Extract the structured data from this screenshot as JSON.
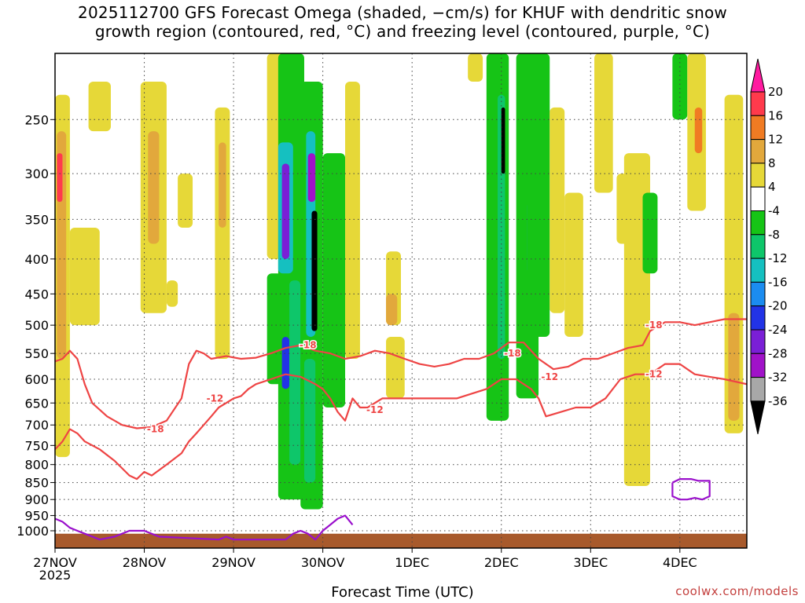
{
  "title_lines": [
    "2025112700 GFS Forecast Omega (shaded, −cm/s) for KHUF with dendritic snow",
    "growth region (contoured, red, °C) and freezing level (contoured, purple, °C)"
  ],
  "credit": "coolwx.com/models",
  "chart_data": {
    "type": "heatmap",
    "title": "2025112700 GFS Forecast Omega (shaded, −cm/s) for KHUF with dendritic snow growth region (contoured, red, °C) and freezing level (contoured, purple, °C)",
    "xlabel": "Forecast Time (UTC)",
    "ylabel": "",
    "x_unit": "hours since 2025-11-27 00 UTC",
    "xlim": [
      0,
      186
    ],
    "ylim_hPa": [
      1060,
      200
    ],
    "x_ticks": [
      {
        "x": 0,
        "label": "27NOV",
        "sublabel": "2025"
      },
      {
        "x": 24,
        "label": "28NOV"
      },
      {
        "x": 48,
        "label": "29NOV"
      },
      {
        "x": 72,
        "label": "30NOV"
      },
      {
        "x": 96,
        "label": "1DEC"
      },
      {
        "x": 120,
        "label": "2DEC"
      },
      {
        "x": 144,
        "label": "3DEC"
      },
      {
        "x": 168,
        "label": "4DEC"
      }
    ],
    "y_ticks": [
      250,
      300,
      350,
      400,
      450,
      500,
      550,
      600,
      650,
      700,
      750,
      800,
      850,
      900,
      950,
      1000
    ],
    "grid": true,
    "colorbar": {
      "ticks": [
        20,
        16,
        12,
        8,
        4,
        -4,
        -8,
        -12,
        -16,
        -20,
        -24,
        -28,
        -32,
        -36
      ],
      "bins": [
        {
          "low": 16,
          "high": 20,
          "color": "#ff3a4c"
        },
        {
          "low": 12,
          "high": 16,
          "color": "#f07b23"
        },
        {
          "low": 8,
          "high": 12,
          "color": "#e2a83c"
        },
        {
          "low": 4,
          "high": 8,
          "color": "#e6d838"
        },
        {
          "low": -4,
          "high": 4,
          "color": "#ffffff"
        },
        {
          "low": -8,
          "high": -4,
          "color": "#16c416"
        },
        {
          "low": -12,
          "high": -8,
          "color": "#0ec66a"
        },
        {
          "low": -16,
          "high": -12,
          "color": "#15c0c0"
        },
        {
          "low": -20,
          "high": -16,
          "color": "#1b8cf0"
        },
        {
          "low": -24,
          "high": -20,
          "color": "#2233e6"
        },
        {
          "low": -28,
          "high": -24,
          "color": "#7a1fd6"
        },
        {
          "low": -32,
          "high": -28,
          "color": "#a012c8"
        },
        {
          "low": -36,
          "high": -32,
          "color": "#a8a8a8"
        }
      ],
      "over_color": "#ff1aa0",
      "under_color": "#000000"
    },
    "omega_patches": [
      {
        "x": [
          0,
          4
        ],
        "p": [
          230,
          780
        ],
        "v": 6
      },
      {
        "x": [
          0.5,
          3
        ],
        "p": [
          260,
          560
        ],
        "v": 10
      },
      {
        "x": [
          0.5,
          2
        ],
        "p": [
          280,
          330
        ],
        "v": 18
      },
      {
        "x": [
          4,
          12
        ],
        "p": [
          360,
          500
        ],
        "v": 5
      },
      {
        "x": [
          9,
          15
        ],
        "p": [
          220,
          260
        ],
        "v": 5
      },
      {
        "x": [
          23,
          30
        ],
        "p": [
          220,
          480
        ],
        "v": 6
      },
      {
        "x": [
          25,
          28
        ],
        "p": [
          260,
          380
        ],
        "v": 10
      },
      {
        "x": [
          30,
          33
        ],
        "p": [
          430,
          470
        ],
        "v": 5
      },
      {
        "x": [
          33,
          37
        ],
        "p": [
          300,
          360
        ],
        "v": 5
      },
      {
        "x": [
          43,
          47
        ],
        "p": [
          240,
          560
        ],
        "v": 6
      },
      {
        "x": [
          44,
          46
        ],
        "p": [
          270,
          360
        ],
        "v": 9
      },
      {
        "x": [
          57,
          62
        ],
        "p": [
          200,
          400
        ],
        "v": 6
      },
      {
        "x": [
          57,
          61
        ],
        "p": [
          420,
          610
        ],
        "v": -6
      },
      {
        "x": [
          60,
          67
        ],
        "p": [
          200,
          900
        ],
        "v": -7
      },
      {
        "x": [
          60,
          64
        ],
        "p": [
          270,
          420
        ],
        "v": -14
      },
      {
        "x": [
          61,
          63
        ],
        "p": [
          290,
          400
        ],
        "v": -26
      },
      {
        "x": [
          61,
          63
        ],
        "p": [
          520,
          620
        ],
        "v": -22
      },
      {
        "x": [
          63,
          66
        ],
        "p": [
          430,
          800
        ],
        "v": -10
      },
      {
        "x": [
          66,
          72
        ],
        "p": [
          220,
          930
        ],
        "v": -8
      },
      {
        "x": [
          67.5,
          70
        ],
        "p": [
          260,
          520
        ],
        "v": -16
      },
      {
        "x": [
          68,
          70
        ],
        "p": [
          280,
          330
        ],
        "v": -30
      },
      {
        "x": [
          69,
          70.5
        ],
        "p": [
          340,
          510
        ],
        "v": -40
      },
      {
        "x": [
          67,
          70
        ],
        "p": [
          560,
          850
        ],
        "v": -12
      },
      {
        "x": [
          72,
          78
        ],
        "p": [
          280,
          660
        ],
        "v": -7
      },
      {
        "x": [
          78,
          82
        ],
        "p": [
          220,
          560
        ],
        "v": 5
      },
      {
        "x": [
          89,
          94
        ],
        "p": [
          520,
          640
        ],
        "v": 5
      },
      {
        "x": [
          89,
          93
        ],
        "p": [
          390,
          500
        ],
        "v": 6
      },
      {
        "x": [
          89,
          92
        ],
        "p": [
          450,
          500
        ],
        "v": 10
      },
      {
        "x": [
          111,
          115
        ],
        "p": [
          200,
          220
        ],
        "v": 5
      },
      {
        "x": [
          116,
          122
        ],
        "p": [
          200,
          690
        ],
        "v": -6
      },
      {
        "x": [
          119,
          121
        ],
        "p": [
          230,
          560
        ],
        "v": -12
      },
      {
        "x": [
          120,
          121
        ],
        "p": [
          240,
          300
        ],
        "v": -40
      },
      {
        "x": [
          124,
          130
        ],
        "p": [
          200,
          640
        ],
        "v": -7
      },
      {
        "x": [
          127,
          129
        ],
        "p": [
          330,
          420
        ],
        "v": -20
      },
      {
        "x": [
          127,
          133
        ],
        "p": [
          200,
          520
        ],
        "v": -5
      },
      {
        "x": [
          133,
          137
        ],
        "p": [
          240,
          480
        ],
        "v": 5
      },
      {
        "x": [
          137,
          142
        ],
        "p": [
          320,
          520
        ],
        "v": 6
      },
      {
        "x": [
          145,
          150
        ],
        "p": [
          200,
          320
        ],
        "v": 5
      },
      {
        "x": [
          151,
          155
        ],
        "p": [
          300,
          380
        ],
        "v": 6
      },
      {
        "x": [
          153,
          160
        ],
        "p": [
          280,
          860
        ],
        "v": 5
      },
      {
        "x": [
          158,
          162
        ],
        "p": [
          320,
          420
        ],
        "v": -6
      },
      {
        "x": [
          166,
          170
        ],
        "p": [
          200,
          250
        ],
        "v": -6
      },
      {
        "x": [
          170,
          175
        ],
        "p": [
          200,
          340
        ],
        "v": 5
      },
      {
        "x": [
          172,
          174
        ],
        "p": [
          240,
          280
        ],
        "v": 14
      },
      {
        "x": [
          180,
          185
        ],
        "p": [
          230,
          720
        ],
        "v": 5
      },
      {
        "x": [
          181,
          184
        ],
        "p": [
          480,
          690
        ],
        "v": 8
      }
    ],
    "series": [
      {
        "name": "-18",
        "color": "#ee4444",
        "x": [
          0,
          2,
          4,
          6,
          8,
          10,
          14,
          18,
          22,
          26,
          30,
          34,
          36,
          38,
          40,
          42,
          46,
          50,
          54,
          58,
          62,
          66,
          70,
          74,
          78,
          82,
          86,
          90,
          94,
          98,
          102,
          106,
          110,
          114,
          118,
          122,
          126,
          130,
          134,
          138,
          142,
          146,
          150,
          154,
          158,
          160,
          164,
          168,
          172,
          176,
          180,
          186
        ],
        "y": [
          565,
          560,
          545,
          560,
          610,
          650,
          680,
          700,
          708,
          705,
          690,
          640,
          570,
          545,
          550,
          560,
          555,
          560,
          558,
          550,
          540,
          535,
          545,
          550,
          560,
          555,
          545,
          550,
          560,
          570,
          575,
          570,
          560,
          560,
          550,
          530,
          530,
          560,
          580,
          575,
          560,
          560,
          550,
          540,
          535,
          510,
          495,
          495,
          500,
          495,
          490,
          490
        ]
      },
      {
        "name": "-12",
        "color": "#ee4444",
        "x": [
          0,
          2,
          4,
          6,
          8,
          12,
          16,
          20,
          22,
          24,
          26,
          30,
          34,
          36,
          38,
          40,
          42,
          44,
          46,
          48,
          50,
          52,
          54,
          58,
          62,
          66,
          70,
          72,
          74,
          76,
          78,
          80,
          82,
          84,
          88,
          92,
          96,
          100,
          104,
          108,
          112,
          116,
          120,
          124,
          128,
          130,
          132,
          136,
          140,
          144,
          148,
          152,
          156,
          160,
          164,
          168,
          172,
          176,
          180,
          186
        ],
        "y": [
          760,
          740,
          710,
          720,
          740,
          760,
          790,
          830,
          840,
          820,
          830,
          800,
          770,
          740,
          720,
          700,
          680,
          660,
          650,
          640,
          635,
          620,
          610,
          600,
          590,
          595,
          610,
          620,
          640,
          670,
          690,
          640,
          660,
          660,
          640,
          640,
          640,
          640,
          640,
          640,
          630,
          620,
          600,
          600,
          620,
          640,
          680,
          670,
          660,
          660,
          640,
          600,
          590,
          590,
          570,
          570,
          590,
          595,
          600,
          610
        ]
      },
      {
        "name": "0",
        "color": "#9a10cc",
        "x": [
          0,
          2,
          4,
          6,
          8,
          12,
          16,
          20,
          24,
          28,
          44,
          46,
          48,
          62,
          64,
          66,
          68,
          70,
          72,
          74,
          76,
          78,
          80
        ],
        "y": [
          960,
          970,
          990,
          1000,
          1010,
          1030,
          1020,
          1000,
          1000,
          1020,
          1030,
          1020,
          1030,
          1030,
          1010,
          1000,
          1010,
          1030,
          1000,
          980,
          960,
          950,
          980
        ]
      },
      {
        "name": "0b",
        "color": "#9a10cc",
        "x": [
          166,
          168,
          171,
          173,
          176,
          176,
          174,
          172,
          170,
          168,
          166,
          166
        ],
        "y": [
          850,
          840,
          840,
          845,
          845,
          890,
          900,
          895,
          900,
          900,
          890,
          850
        ]
      }
    ],
    "contour_labels": [
      {
        "x": 27,
        "p": 710,
        "text": "-18"
      },
      {
        "x": 43,
        "p": 640,
        "text": "-12"
      },
      {
        "x": 68,
        "p": 535,
        "text": "-18"
      },
      {
        "x": 86,
        "p": 665,
        "text": "-12"
      },
      {
        "x": 123,
        "p": 550,
        "text": "-18"
      },
      {
        "x": 133,
        "p": 595,
        "text": "-12"
      },
      {
        "x": 161,
        "p": 500,
        "text": "-18"
      },
      {
        "x": 161,
        "p": 590,
        "text": "-12"
      }
    ],
    "terrain_color": "#a85a2c",
    "terrain_top_hPa": 1010
  }
}
